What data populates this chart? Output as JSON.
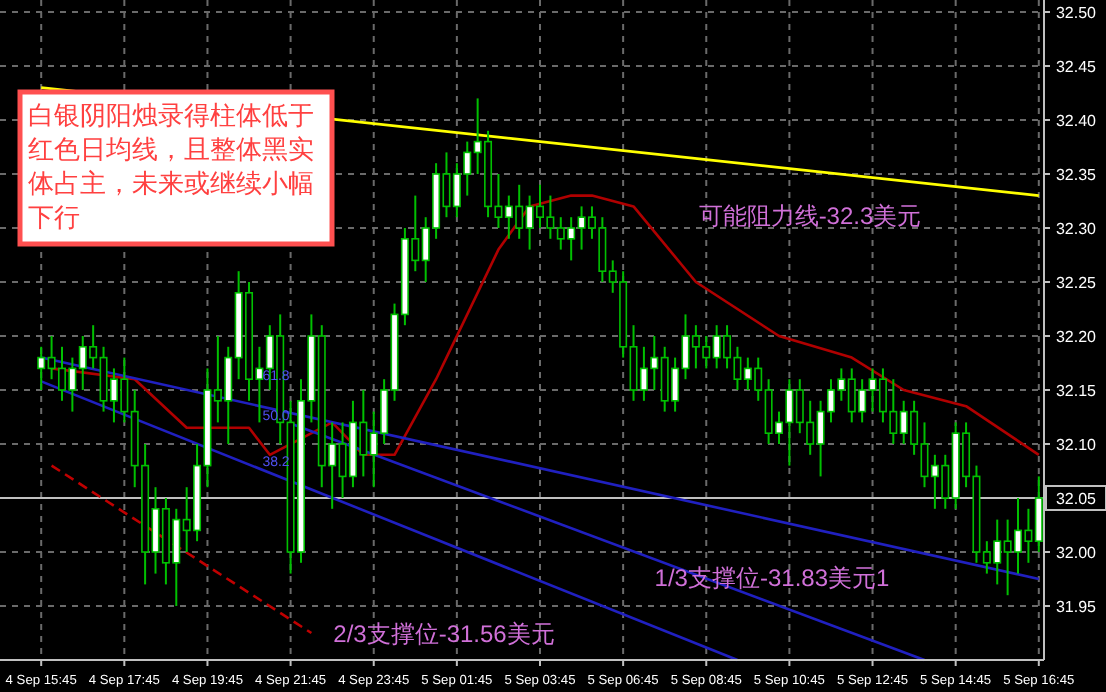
{
  "chart_data": {
    "type": "candlestick",
    "color": "#00c000",
    "categories": [
      "4 Sep 15:45",
      null,
      null,
      null,
      null,
      null,
      null,
      null,
      "4 Sep 17:45",
      null,
      null,
      null,
      null,
      null,
      null,
      null,
      "4 Sep 19:45",
      null,
      null,
      null,
      null,
      null,
      null,
      null,
      "4 Sep 21:45",
      null,
      null,
      null,
      null,
      null,
      null,
      null,
      "4 Sep 23:45",
      null,
      null,
      null,
      null,
      null,
      null,
      null,
      "5 Sep 01:45",
      null,
      null,
      null,
      null,
      null,
      null,
      null,
      "5 Sep 03:45",
      null,
      null,
      null,
      null,
      null,
      null,
      null,
      "5 Sep 06:45",
      null,
      null,
      null,
      null,
      null,
      null,
      null,
      "5 Sep 08:45",
      null,
      null,
      null,
      null,
      null,
      null,
      null,
      "5 Sep 10:45",
      null,
      null,
      null,
      null,
      null,
      null,
      null,
      "5 Sep 12:45",
      null,
      null,
      null,
      null,
      null,
      null,
      null,
      "5 Sep 14:45",
      null,
      null,
      null,
      null,
      null,
      null,
      null,
      "5 Sep 16:45"
    ],
    "ohlc": [
      [
        32.17,
        32.19,
        32.15,
        32.18
      ],
      [
        32.18,
        32.2,
        32.16,
        32.17
      ],
      [
        32.17,
        32.19,
        32.14,
        32.15
      ],
      [
        32.15,
        32.18,
        32.13,
        32.17
      ],
      [
        32.17,
        32.2,
        32.15,
        32.19
      ],
      [
        32.19,
        32.21,
        32.17,
        32.18
      ],
      [
        32.18,
        32.19,
        32.13,
        32.14
      ],
      [
        32.14,
        32.17,
        32.12,
        32.16
      ],
      [
        32.16,
        32.18,
        32.12,
        32.13
      ],
      [
        32.13,
        32.15,
        32.06,
        32.08
      ],
      [
        32.08,
        32.1,
        31.97,
        32.0
      ],
      [
        32.0,
        32.06,
        31.98,
        32.04
      ],
      [
        32.04,
        32.05,
        31.97,
        31.99
      ],
      [
        31.99,
        32.04,
        31.95,
        32.03
      ],
      [
        32.03,
        32.06,
        32.0,
        32.02
      ],
      [
        32.02,
        32.1,
        32.01,
        32.08
      ],
      [
        32.08,
        32.17,
        32.06,
        32.15
      ],
      [
        32.15,
        32.2,
        32.12,
        32.14
      ],
      [
        32.14,
        32.19,
        32.1,
        32.18
      ],
      [
        32.18,
        32.26,
        32.16,
        32.24
      ],
      [
        32.24,
        32.25,
        32.14,
        32.16
      ],
      [
        32.16,
        32.19,
        32.12,
        32.17
      ],
      [
        32.17,
        32.21,
        32.15,
        32.2
      ],
      [
        32.2,
        32.22,
        32.1,
        32.12
      ],
      [
        32.12,
        32.14,
        31.98,
        32.0
      ],
      [
        32.0,
        32.16,
        31.99,
        32.14
      ],
      [
        32.14,
        32.22,
        32.12,
        32.2
      ],
      [
        32.2,
        32.21,
        32.06,
        32.08
      ],
      [
        32.08,
        32.12,
        32.04,
        32.1
      ],
      [
        32.1,
        32.12,
        32.05,
        32.07
      ],
      [
        32.07,
        32.14,
        32.06,
        32.12
      ],
      [
        32.12,
        32.15,
        32.07,
        32.09
      ],
      [
        32.09,
        32.13,
        32.06,
        32.11
      ],
      [
        32.11,
        32.16,
        32.1,
        32.15
      ],
      [
        32.15,
        32.23,
        32.14,
        32.22
      ],
      [
        32.22,
        32.3,
        32.21,
        32.29
      ],
      [
        32.29,
        32.33,
        32.26,
        32.27
      ],
      [
        32.27,
        32.31,
        32.25,
        32.3
      ],
      [
        32.3,
        32.36,
        32.29,
        32.35
      ],
      [
        32.35,
        32.37,
        32.31,
        32.32
      ],
      [
        32.32,
        32.36,
        32.31,
        32.35
      ],
      [
        32.35,
        32.38,
        32.33,
        32.37
      ],
      [
        32.37,
        32.42,
        32.35,
        32.38
      ],
      [
        32.38,
        32.39,
        32.31,
        32.32
      ],
      [
        32.32,
        32.35,
        32.3,
        32.31
      ],
      [
        32.31,
        32.33,
        32.29,
        32.32
      ],
      [
        32.32,
        32.34,
        32.29,
        32.3
      ],
      [
        32.3,
        32.33,
        32.28,
        32.32
      ],
      [
        32.32,
        32.34,
        32.3,
        32.31
      ],
      [
        32.31,
        32.33,
        32.29,
        32.3
      ],
      [
        32.3,
        32.31,
        32.28,
        32.29
      ],
      [
        32.29,
        32.31,
        32.27,
        32.3
      ],
      [
        32.3,
        32.32,
        32.28,
        32.31
      ],
      [
        32.31,
        32.32,
        32.29,
        32.3
      ],
      [
        32.3,
        32.31,
        32.25,
        32.26
      ],
      [
        32.26,
        32.27,
        32.24,
        32.25
      ],
      [
        32.25,
        32.26,
        32.18,
        32.19
      ],
      [
        32.19,
        32.21,
        32.14,
        32.15
      ],
      [
        32.15,
        32.19,
        32.14,
        32.17
      ],
      [
        32.17,
        32.2,
        32.15,
        32.18
      ],
      [
        32.18,
        32.19,
        32.13,
        32.14
      ],
      [
        32.14,
        32.18,
        32.13,
        32.17
      ],
      [
        32.17,
        32.22,
        32.16,
        32.2
      ],
      [
        32.2,
        32.21,
        32.17,
        32.19
      ],
      [
        32.19,
        32.2,
        32.17,
        32.18
      ],
      [
        32.18,
        32.21,
        32.17,
        32.2
      ],
      [
        32.2,
        32.21,
        32.17,
        32.18
      ],
      [
        32.18,
        32.19,
        32.15,
        32.16
      ],
      [
        32.16,
        32.18,
        32.15,
        32.17
      ],
      [
        32.17,
        32.18,
        32.14,
        32.15
      ],
      [
        32.15,
        32.16,
        32.1,
        32.11
      ],
      [
        32.11,
        32.13,
        32.1,
        32.12
      ],
      [
        32.12,
        32.16,
        32.08,
        32.15
      ],
      [
        32.15,
        32.16,
        32.11,
        32.12
      ],
      [
        32.12,
        32.14,
        32.09,
        32.1
      ],
      [
        32.1,
        32.14,
        32.07,
        32.13
      ],
      [
        32.13,
        32.16,
        32.12,
        32.15
      ],
      [
        32.15,
        32.17,
        32.14,
        32.16
      ],
      [
        32.16,
        32.17,
        32.12,
        32.13
      ],
      [
        32.13,
        32.16,
        32.12,
        32.15
      ],
      [
        32.15,
        32.17,
        32.13,
        32.16
      ],
      [
        32.16,
        32.17,
        32.12,
        32.13
      ],
      [
        32.13,
        32.16,
        32.1,
        32.11
      ],
      [
        32.11,
        32.14,
        32.1,
        32.13
      ],
      [
        32.13,
        32.14,
        32.09,
        32.1
      ],
      [
        32.1,
        32.12,
        32.06,
        32.07
      ],
      [
        32.07,
        32.09,
        32.04,
        32.08
      ],
      [
        32.08,
        32.09,
        32.04,
        32.05
      ],
      [
        32.05,
        32.12,
        32.04,
        32.11
      ],
      [
        32.11,
        32.12,
        32.06,
        32.07
      ],
      [
        32.07,
        32.08,
        31.99,
        32.0
      ],
      [
        32.0,
        32.01,
        31.98,
        31.99
      ],
      [
        31.99,
        32.03,
        31.97,
        32.01
      ],
      [
        32.01,
        32.03,
        31.96,
        32.0
      ],
      [
        32.0,
        32.05,
        31.98,
        32.02
      ],
      [
        32.02,
        32.04,
        31.99,
        32.01
      ],
      [
        32.01,
        32.07,
        32.0,
        32.05
      ]
    ],
    "series": [
      {
        "type": "line",
        "color": "#ffff00",
        "values": [
          32.43,
          null,
          null,
          null,
          null,
          null,
          null,
          null,
          null,
          null,
          null,
          null,
          null,
          null,
          null,
          null,
          null,
          null,
          null,
          null,
          null,
          null,
          null,
          null,
          null,
          null,
          null,
          null,
          null,
          null,
          null,
          null,
          null,
          null,
          null,
          null,
          null,
          null,
          null,
          null,
          null,
          null,
          null,
          null,
          null,
          null,
          null,
          null,
          null,
          null,
          null,
          null,
          null,
          null,
          null,
          null,
          null,
          null,
          null,
          null,
          null,
          null,
          null,
          null,
          null,
          null,
          null,
          null,
          null,
          null,
          null,
          null,
          null,
          null,
          null,
          null,
          null,
          null,
          null,
          null,
          null,
          null,
          null,
          null,
          null,
          null,
          null,
          null,
          null,
          null,
          null,
          null,
          null,
          null,
          null,
          null,
          32.33
        ]
      },
      {
        "type": "line",
        "color": "#b00000",
        "values": [
          null,
          32.17,
          null,
          null,
          null,
          null,
          null,
          null,
          null,
          32.16,
          null,
          null,
          null,
          null,
          32.115,
          null,
          null,
          null,
          null,
          null,
          32.115,
          null,
          32.09,
          null,
          null,
          null,
          null,
          null,
          32.12,
          null,
          null,
          32.09,
          null,
          null,
          32.09,
          null,
          null,
          null,
          32.16,
          32.18,
          null,
          null,
          null,
          null,
          32.28,
          null,
          null,
          32.32,
          null,
          null,
          null,
          32.33,
          null,
          32.33,
          null,
          null,
          null,
          32.32,
          null,
          null,
          null,
          null,
          null,
          32.25,
          null,
          null,
          null,
          null,
          null,
          null,
          null,
          32.2,
          null,
          null,
          null,
          null,
          null,
          null,
          32.18,
          null,
          null,
          null,
          null,
          32.15,
          null,
          null,
          null,
          null,
          null,
          32.135,
          null,
          null,
          null,
          null,
          null,
          null,
          32.09
        ]
      },
      {
        "type": "line",
        "color": "#2020c0",
        "values": [
          32.18,
          null,
          null,
          null,
          null,
          null,
          null,
          null,
          null,
          null,
          null,
          null,
          null,
          null,
          null,
          null,
          null,
          null,
          null,
          null,
          null,
          null,
          null,
          null,
          null,
          null,
          null,
          null,
          null,
          null,
          null,
          null,
          null,
          null,
          null,
          null,
          null,
          null,
          null,
          null,
          null,
          null,
          null,
          null,
          null,
          null,
          null,
          null,
          null,
          null,
          null,
          null,
          null,
          null,
          null,
          null,
          null,
          null,
          null,
          null,
          null,
          null,
          null,
          null,
          null,
          null,
          null,
          null,
          null,
          null,
          null,
          null,
          null,
          null,
          null,
          null,
          null,
          null,
          null,
          null,
          null,
          null,
          null,
          null,
          null,
          null,
          null,
          null,
          null,
          null,
          null,
          null,
          null,
          null,
          null,
          null,
          31.975
        ]
      },
      {
        "type": "line",
        "color": "#2020c0",
        "values": [
          null,
          null,
          null,
          null,
          null,
          null,
          null,
          null,
          null,
          null,
          null,
          null,
          null,
          null,
          null,
          null,
          null,
          null,
          null,
          null,
          null,
          null,
          null,
          null,
          32.119,
          null,
          null,
          null,
          null,
          null,
          null,
          null,
          null,
          null,
          null,
          null,
          null,
          null,
          null,
          null,
          null,
          null,
          null,
          null,
          null,
          null,
          null,
          null,
          null,
          null,
          null,
          null,
          null,
          null,
          null,
          null,
          null,
          null,
          null,
          null,
          null,
          null,
          null,
          null,
          null,
          null,
          null,
          null,
          null,
          null,
          null,
          null,
          null,
          null,
          null,
          null,
          null,
          null,
          null,
          null,
          null,
          null,
          null,
          null,
          null,
          31.9,
          null,
          null,
          null,
          null,
          null,
          null,
          null,
          null,
          null,
          null,
          null
        ]
      },
      {
        "type": "line",
        "color": "#2020c0",
        "values": [
          32.158,
          null,
          null,
          null,
          null,
          null,
          null,
          null,
          null,
          null,
          null,
          null,
          null,
          null,
          null,
          null,
          null,
          null,
          null,
          null,
          null,
          null,
          null,
          null,
          null,
          null,
          null,
          null,
          null,
          null,
          null,
          null,
          null,
          null,
          null,
          null,
          null,
          null,
          null,
          null,
          null,
          null,
          null,
          null,
          null,
          null,
          null,
          null,
          null,
          null,
          null,
          null,
          null,
          null,
          null,
          null,
          null,
          null,
          null,
          null,
          null,
          null,
          null,
          null,
          null,
          null,
          null,
          31.9,
          null,
          null,
          null,
          null,
          null,
          null,
          null,
          null,
          null,
          null,
          null,
          null,
          null,
          null,
          null,
          null,
          null,
          null,
          null,
          null,
          null,
          null,
          null,
          null,
          null,
          null,
          null,
          null,
          null
        ]
      },
      {
        "type": "line",
        "color": "#c00000",
        "line_style": "dashed",
        "values": [
          null,
          32.08,
          null,
          null,
          null,
          null,
          null,
          null,
          null,
          null,
          null,
          null,
          null,
          null,
          null,
          null,
          null,
          null,
          null,
          null,
          null,
          null,
          null,
          null,
          null,
          null,
          31.925,
          null,
          null,
          null,
          null,
          null,
          null,
          null,
          null,
          null,
          null,
          null,
          null,
          null,
          null,
          null,
          null,
          null,
          null,
          null,
          null,
          null,
          null,
          null,
          null,
          null,
          null,
          null,
          null,
          null,
          null,
          null,
          null,
          null,
          null,
          null,
          null,
          null,
          null,
          null,
          null,
          null,
          null,
          null,
          null,
          null,
          null,
          null,
          null,
          null,
          null,
          null,
          null,
          null,
          null,
          null,
          null,
          null,
          null,
          null,
          null,
          null,
          null,
          null,
          null,
          null,
          null,
          null,
          null,
          null,
          null
        ]
      }
    ],
    "ylim": [
      31.9,
      32.5
    ],
    "yticks": [
      {
        "value": 31.95,
        "label": "31.95"
      },
      {
        "value": 32.0,
        "label": "32.00"
      },
      {
        "value": 32.05,
        "label": null
      },
      {
        "value": 32.1,
        "label": "32.10"
      },
      {
        "value": 32.15,
        "label": "32.15"
      },
      {
        "value": 32.2,
        "label": "32.20"
      },
      {
        "value": 32.25,
        "label": "32.25"
      },
      {
        "value": 32.3,
        "label": "32.30"
      },
      {
        "value": 32.35,
        "label": "32.35"
      },
      {
        "value": 32.4,
        "label": "32.40"
      },
      {
        "value": 32.45,
        "label": "32.45"
      },
      {
        "value": 32.5,
        "label": "32.50"
      }
    ],
    "grid": true,
    "ref_lines": [
      {
        "axis": "y",
        "value": 32.05,
        "label": "32.05",
        "color": "#c0c0c0"
      }
    ],
    "annotations": [
      "白银阴阳烛录得柱体低于红色日均线，且整体黑实体占主，未来或继续小幅下行",
      "可能阻力线-32.3美元",
      "1/3支撑位-31.83美元1",
      "2/3支撑位-31.56美元",
      "61.8",
      "50.0",
      "38.2"
    ]
  }
}
